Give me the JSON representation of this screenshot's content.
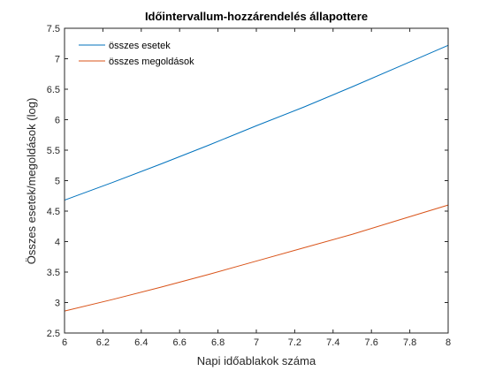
{
  "chart_data": {
    "type": "line",
    "title": "Időintervallum-hozzárendelés állapottere",
    "xlabel": "Napi időablakok száma",
    "ylabel": "Összes esetek/megoldások (log)",
    "xlim": [
      6,
      8
    ],
    "ylim": [
      2.5,
      7.5
    ],
    "xticks": [
      6,
      6.2,
      6.4,
      6.6,
      6.8,
      7,
      7.2,
      7.4,
      7.6,
      7.8,
      8
    ],
    "xtick_labels": [
      "6",
      "6.2",
      "6.4",
      "6.6",
      "6.8",
      "7",
      "7.2",
      "7.4",
      "7.6",
      "7.8",
      "8"
    ],
    "yticks": [
      2.5,
      3,
      3.5,
      4,
      4.5,
      5,
      5.5,
      6,
      6.5,
      7,
      7.5
    ],
    "ytick_labels": [
      "2.5",
      "3",
      "3.5",
      "4",
      "4.5",
      "5",
      "5.5",
      "6",
      "6.5",
      "7",
      "7.5"
    ],
    "grid": false,
    "legend": "top-left",
    "series": [
      {
        "name": "összes esetek",
        "color": "#0072BD",
        "x": [
          6,
          6.25,
          6.5,
          6.75,
          7,
          7.25,
          7.5,
          7.75,
          8
        ],
        "values": [
          4.68,
          4.97,
          5.27,
          5.58,
          5.9,
          6.21,
          6.54,
          6.88,
          7.22
        ]
      },
      {
        "name": "összes megoldások",
        "color": "#D95319",
        "x": [
          6,
          6.25,
          6.5,
          6.75,
          7,
          7.25,
          7.5,
          7.75,
          8
        ],
        "values": [
          2.86,
          3.05,
          3.25,
          3.46,
          3.68,
          3.9,
          4.12,
          4.36,
          4.6
        ]
      }
    ]
  }
}
